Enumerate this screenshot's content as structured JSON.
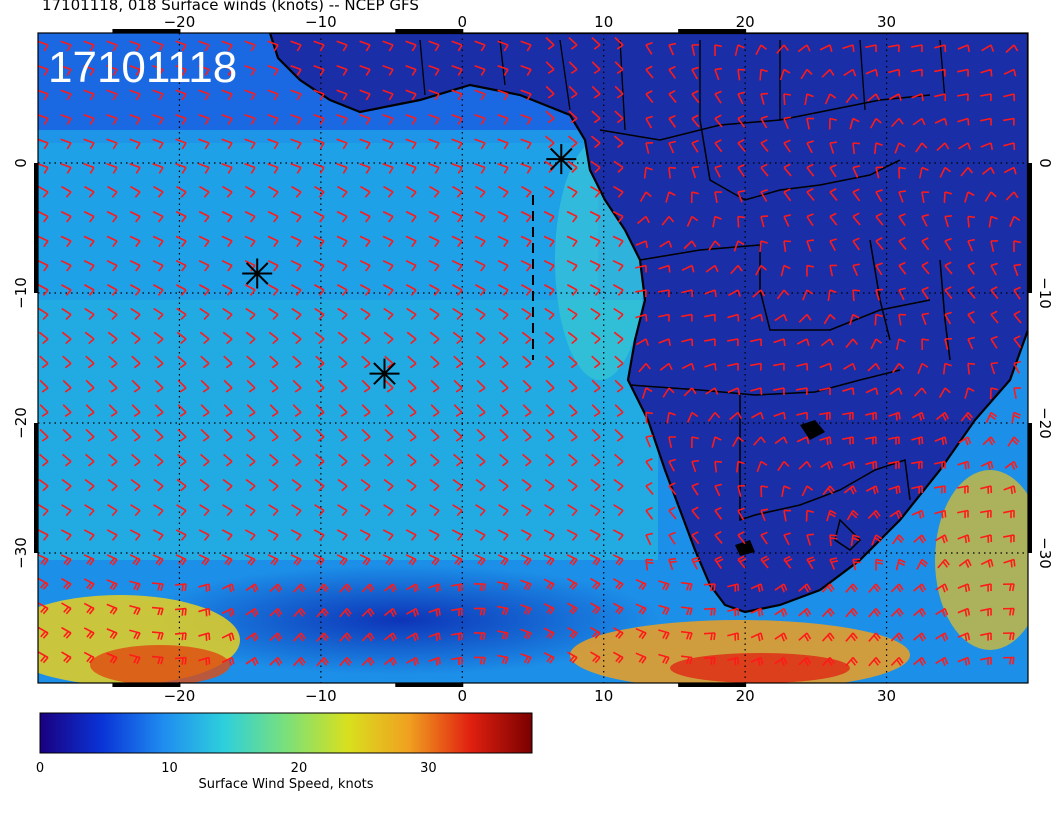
{
  "title": "17101118, 018 Surface winds (knots) -- NCEP GFS",
  "stamp": "17101118",
  "x_ticks": [
    {
      "lon": -20,
      "label": "−20"
    },
    {
      "lon": -10,
      "label": "−10"
    },
    {
      "lon": 0,
      "label": "0"
    },
    {
      "lon": 10,
      "label": "10"
    },
    {
      "lon": 20,
      "label": "20"
    },
    {
      "lon": 30,
      "label": "30"
    }
  ],
  "y_ticks": [
    {
      "lat": 0,
      "label": "0"
    },
    {
      "lat": -10,
      "label": "−10"
    },
    {
      "lat": -20,
      "label": "−20"
    },
    {
      "lat": -30,
      "label": "−30"
    }
  ],
  "map_extent": {
    "lon_min": -30,
    "lon_max": 40,
    "lat_min": -40,
    "lat_max": 10
  },
  "markers": [
    {
      "name": "storm-marker-1",
      "lon": -14.5,
      "lat": -8.5
    },
    {
      "name": "storm-marker-2",
      "lon": -5.5,
      "lat": -16.2
    },
    {
      "name": "storm-marker-3",
      "lon": 7.0,
      "lat": 0.3
    }
  ],
  "colorbar": {
    "label": "Surface Wind Speed, knots",
    "min": 0,
    "max": 38,
    "ticks": [
      {
        "value": 0,
        "label": "0"
      },
      {
        "value": 10,
        "label": "10"
      },
      {
        "value": 20,
        "label": "20"
      },
      {
        "value": 30,
        "label": "30"
      }
    ],
    "stops": [
      "#1a0080",
      "#0a33d6",
      "#1f8cf0",
      "#2ed0dc",
      "#7ae07a",
      "#d8e01e",
      "#f0a020",
      "#e02010",
      "#7a0000"
    ]
  },
  "colors": {
    "barb": "#ff1a1a",
    "coast": "#000000",
    "grid": "#000000"
  }
}
